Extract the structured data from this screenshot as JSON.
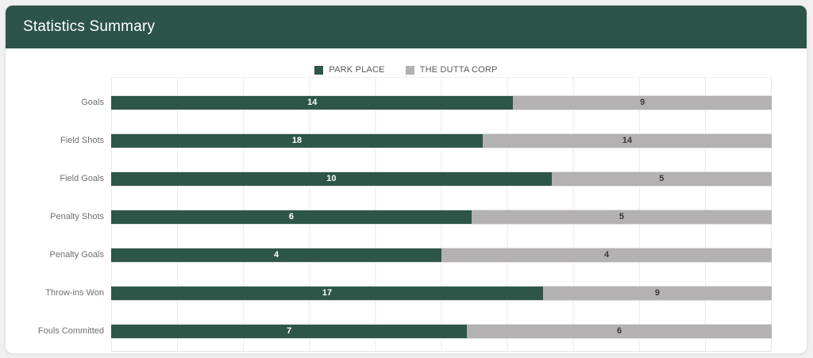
{
  "header": {
    "title": "Statistics Summary"
  },
  "colors": {
    "header_bg": "#2c5449",
    "home_series": "#2d5649",
    "away_series": "#b3b1b1",
    "page_bg": "#f0f0f1",
    "card_bg": "#ffffff",
    "gridline": "#e9e9e9",
    "value_on_home": "#ffffff",
    "value_on_away": "#3a3a3a",
    "category_label": "#6f6f6f",
    "legend_text": "#57585b"
  },
  "chart_data": {
    "type": "bar",
    "orientation": "horizontal",
    "stacking": "percent",
    "title": "Statistics Summary",
    "categories": [
      "Goals",
      "Field Shots",
      "Field Goals",
      "Penalty Shots",
      "Penalty Goals",
      "Throw-ins Won",
      "Fouls Committed"
    ],
    "series": [
      {
        "name": "PARK PLACE",
        "color": "#2d5649",
        "values": [
          14,
          18,
          10,
          6,
          4,
          17,
          7
        ]
      },
      {
        "name": "THE DUTTA CORP",
        "color": "#b3b1b1",
        "values": [
          9,
          14,
          5,
          5,
          4,
          9,
          6
        ]
      }
    ],
    "legend_position": "top",
    "grid": true,
    "value_axis": {
      "min": 0,
      "max": 100,
      "unit": "percent",
      "gridline_step_percent": 10,
      "tick_labels_visible": false
    },
    "annotations": "segment-values-centered"
  }
}
